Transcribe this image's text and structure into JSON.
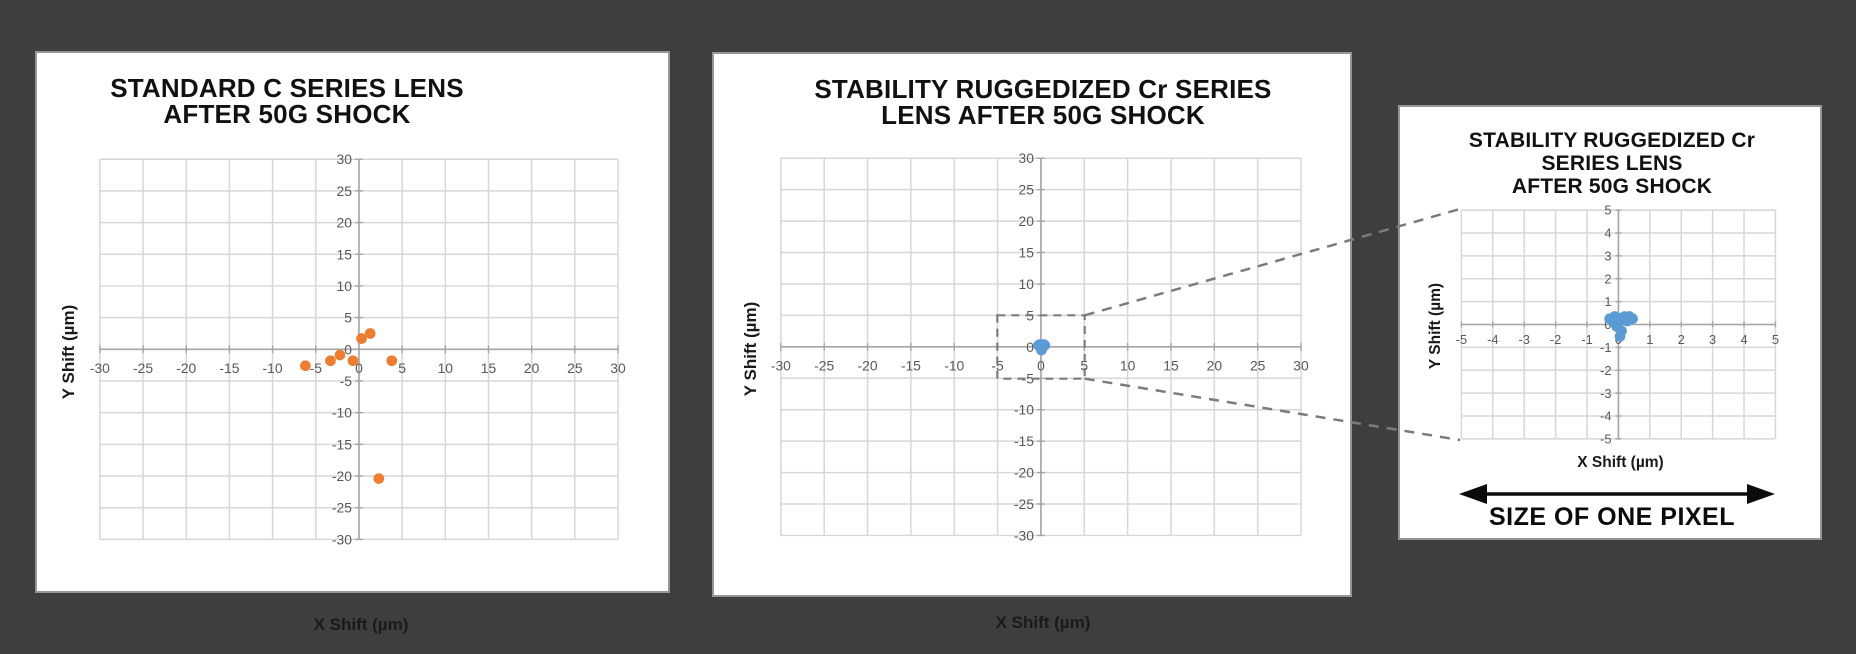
{
  "background_color": "#3E3E3E",
  "colors": {
    "orange": "#ED7D31",
    "blue": "#5B9BD5",
    "grid": "#D7D7D7",
    "axis": "#A6A6A6",
    "tick_text": "#595959",
    "panel_border": "#969696",
    "panel_bg": "#FFFFFF",
    "callout_dash": "#7C7C7C",
    "arrow_black": "#0B0B0B"
  },
  "chart_data": [
    {
      "id": "standard-c",
      "type": "scatter",
      "title_lines": [
        "STANDARD C SERIES LENS",
        "AFTER 50G SHOCK"
      ],
      "xlabel": "X Shift (µm)",
      "ylabel": "Y Shift (µm)",
      "xlim": [
        -30,
        30
      ],
      "ylim": [
        -30,
        30
      ],
      "tick_step": 5,
      "grid": true,
      "marker_color": "#ED7D31",
      "points": [
        [
          -6.2,
          -2.6
        ],
        [
          -3.3,
          -1.8
        ],
        [
          -2.2,
          -0.9
        ],
        [
          -0.7,
          -1.8
        ],
        [
          0.3,
          1.7
        ],
        [
          1.3,
          2.5
        ],
        [
          3.8,
          -1.8
        ],
        [
          2.3,
          -20.4
        ]
      ]
    },
    {
      "id": "ruggedized-cr",
      "type": "scatter",
      "title_lines": [
        "STABILITY RUGGEDIZED Cr SERIES",
        "LENS AFTER 50G SHOCK"
      ],
      "xlabel": "X Shift (µm)",
      "ylabel": "Y Shift (µm)",
      "xlim": [
        -30,
        30
      ],
      "ylim": [
        -30,
        30
      ],
      "tick_step": 5,
      "grid": true,
      "marker_color": "#5B9BD5",
      "points": [
        [
          -0.28,
          0.25
        ],
        [
          -0.12,
          0.35
        ],
        [
          0.05,
          0.28
        ],
        [
          0.2,
          0.35
        ],
        [
          0.35,
          0.35
        ],
        [
          0.45,
          0.25
        ],
        [
          -0.15,
          0.08
        ],
        [
          0.0,
          0.1
        ],
        [
          0.28,
          0.15
        ],
        [
          -0.05,
          -0.1
        ],
        [
          0.1,
          -0.28
        ],
        [
          0.05,
          -0.52
        ]
      ]
    },
    {
      "id": "ruggedized-cr-zoom",
      "type": "scatter",
      "title_lines": [
        "STABILITY RUGGEDIZED Cr",
        "SERIES LENS",
        "AFTER 50G SHOCK"
      ],
      "xlabel": "X Shift (µm)",
      "ylabel": "Y Shift (µm)",
      "xlim": [
        -5,
        5
      ],
      "ylim": [
        -5,
        5
      ],
      "tick_step": 1,
      "grid": true,
      "marker_color": "#5B9BD5",
      "points": [
        [
          -0.28,
          0.25
        ],
        [
          -0.12,
          0.35
        ],
        [
          0.05,
          0.28
        ],
        [
          0.2,
          0.35
        ],
        [
          0.35,
          0.35
        ],
        [
          0.45,
          0.25
        ],
        [
          -0.15,
          0.08
        ],
        [
          0.0,
          0.1
        ],
        [
          0.28,
          0.15
        ],
        [
          -0.05,
          -0.1
        ],
        [
          0.1,
          -0.28
        ],
        [
          0.05,
          -0.52
        ]
      ]
    }
  ],
  "callout": {
    "region_on_chart": "ruggedized-cr",
    "region": {
      "xmin": -5,
      "xmax": 5,
      "ymin": -5,
      "ymax": 5
    },
    "target_chart": "ruggedized-cr-zoom"
  },
  "annotations": {
    "pixel_size_label": "SIZE OF ONE PIXEL"
  }
}
